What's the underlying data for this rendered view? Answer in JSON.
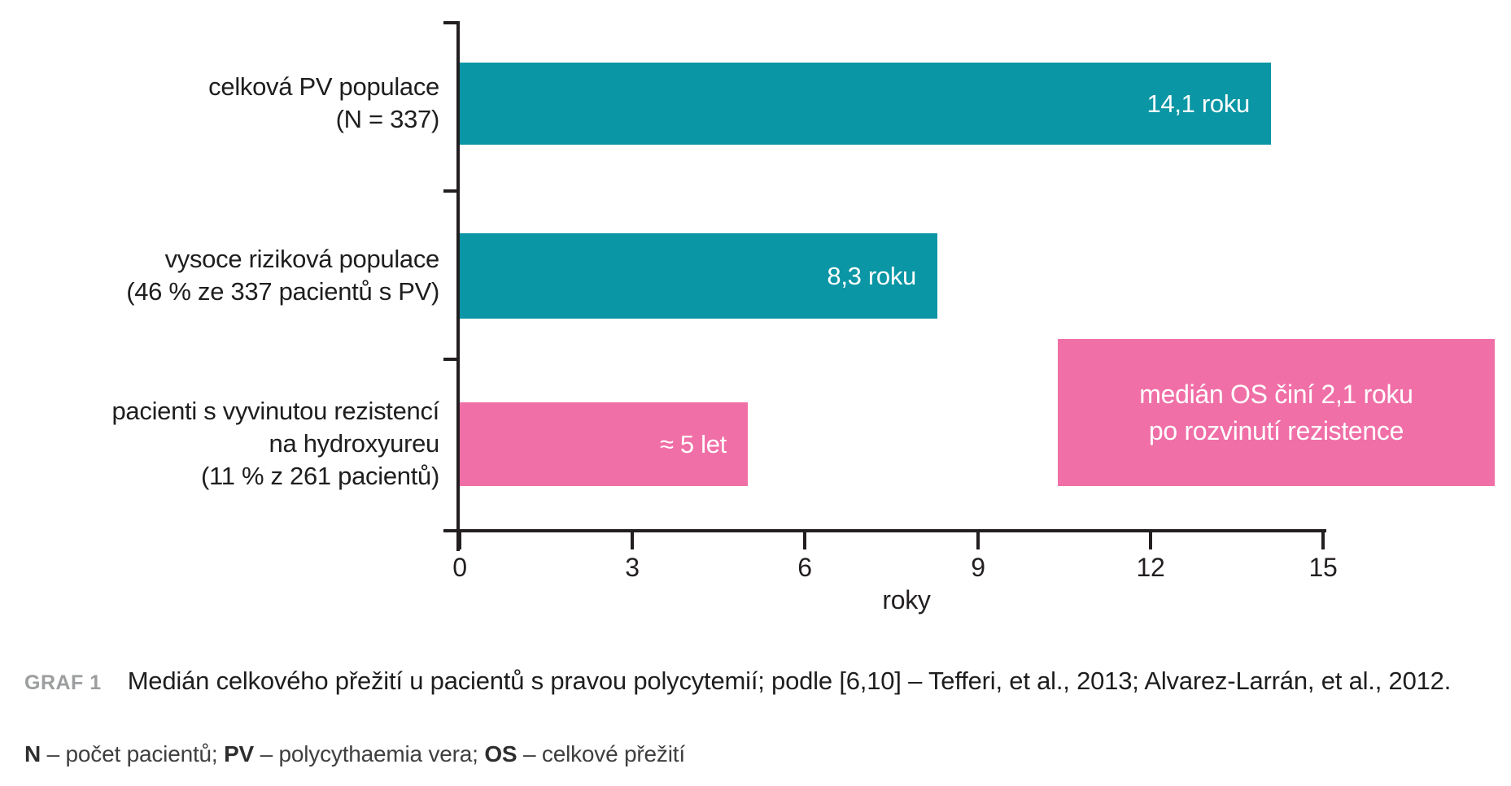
{
  "chart_data": {
    "type": "bar",
    "orientation": "horizontal",
    "categories": [
      {
        "label_lines": [
          "celková PV populace",
          "(N = 337)"
        ],
        "value": 14.1,
        "bar_label": "14,1 roku",
        "color": "teal"
      },
      {
        "label_lines": [
          "vysoce riziková populace",
          "(46 % ze 337 pacientů s PV)"
        ],
        "value": 8.3,
        "bar_label": "8,3 roku",
        "color": "pink_teal_note_actually_teal",
        "color_key": "teal"
      },
      {
        "label_lines": [
          "pacienti s vyvinutou rezistencí",
          "na hydroxyureu",
          "(11 % z 261 pacientů)"
        ],
        "value": 5,
        "bar_label": "≈ 5 let",
        "color": "pink"
      }
    ],
    "xlabel": "roky",
    "xlim": [
      0,
      15
    ],
    "xticks": [
      0,
      3,
      6,
      9,
      12,
      15
    ],
    "grid": false,
    "annotation": {
      "lines": [
        "medián OS činí 2,1 roku",
        "po rozvinutí rezistence"
      ],
      "color": "pink",
      "x_start": 10.39,
      "x_end": 17.98
    },
    "colors": {
      "teal": "#0a96a4",
      "pink": "#f06fa7",
      "axis": "#231f20"
    }
  },
  "caption": {
    "tag": "GRAF 1",
    "text": "Medián celkového přežití u pacientů s pravou polycytemií; podle [6,10] – Tefferi, et al., 2013; Alvarez-Larrán, et al., 2012."
  },
  "footnote": {
    "parts": [
      {
        "text": "N",
        "bold": true
      },
      {
        "text": " – počet pacientů; ",
        "bold": false
      },
      {
        "text": "PV",
        "bold": true
      },
      {
        "text": " – polycythaemia vera; ",
        "bold": false
      },
      {
        "text": "OS",
        "bold": true
      },
      {
        "text": " – celkové přežití",
        "bold": false
      }
    ]
  }
}
